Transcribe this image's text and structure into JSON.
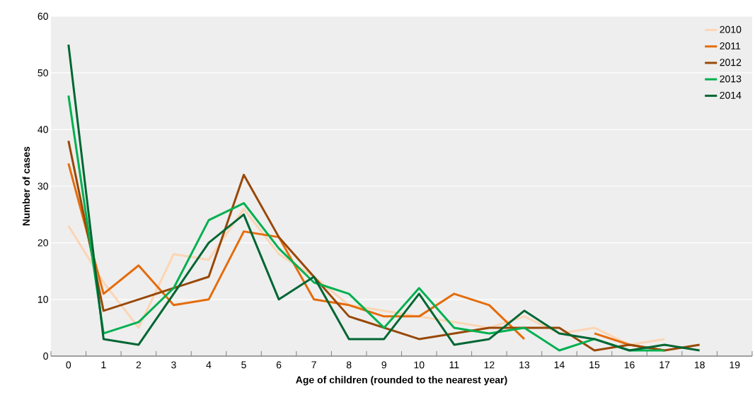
{
  "chart_data": {
    "type": "line",
    "xlabel": "Age of children (rounded to the nearest year)",
    "ylabel": "Number of cases",
    "categories": [
      "0",
      "1",
      "2",
      "3",
      "4",
      "5",
      "6",
      "7",
      "8",
      "9",
      "10",
      "11",
      "12",
      "13",
      "14",
      "15",
      "16",
      "17",
      "18",
      "19"
    ],
    "series": [
      {
        "name": "2010",
        "color": "#fcd5b4",
        "values": [
          23,
          13,
          5,
          18,
          17,
          26,
          18,
          14,
          9,
          8,
          7,
          6,
          5,
          7,
          4,
          5,
          2,
          3,
          null,
          null
        ]
      },
      {
        "name": "2011",
        "color": "#e46c0a",
        "values": [
          34,
          11,
          16,
          9,
          10,
          22,
          21,
          10,
          9,
          7,
          7,
          11,
          9,
          3,
          null,
          4,
          2,
          1,
          null,
          null
        ]
      },
      {
        "name": "2012",
        "color": "#984807",
        "values": [
          38,
          8,
          10,
          12,
          14,
          32,
          21,
          14,
          7,
          5,
          3,
          4,
          5,
          5,
          5,
          1,
          2,
          1,
          2,
          null
        ]
      },
      {
        "name": "2013",
        "color": "#00b050",
        "values": [
          46,
          4,
          6,
          12,
          24,
          27,
          19,
          13,
          11,
          5,
          12,
          5,
          4,
          5,
          1,
          3,
          1,
          1,
          null,
          null
        ]
      },
      {
        "name": "2014",
        "color": "#006633",
        "values": [
          55,
          3,
          2,
          11,
          20,
          25,
          10,
          14,
          3,
          3,
          11,
          2,
          3,
          8,
          4,
          3,
          1,
          2,
          1,
          null
        ]
      }
    ],
    "ylim": [
      0,
      60
    ],
    "yticks": [
      0,
      10,
      20,
      30,
      40,
      50,
      60
    ],
    "grid": "y",
    "legend": "top right",
    "line_style": "solid",
    "marker": "none"
  }
}
